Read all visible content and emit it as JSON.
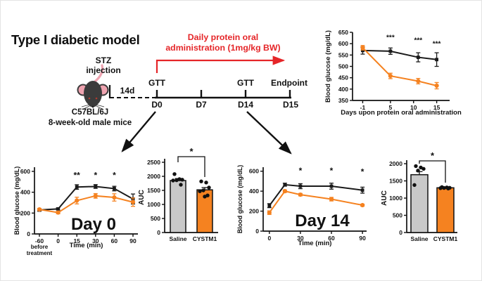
{
  "title": "Type I diabetic model",
  "colors": {
    "series_control": "#1a1a1a",
    "series_treatment": "#F58220",
    "red_accent": "#E52528",
    "gray_bar": "#C9C9C9",
    "mouse_body": "#3b3b3b",
    "mouse_ear": "#EFA3B0"
  },
  "schematic": {
    "stz_line1": "STZ",
    "stz_line2": "injection",
    "strain_line1": "C57BL/6J",
    "strain_line2": "8-week-old male mice",
    "interval_label": "14d",
    "red_note_line1": "Daily protein oral",
    "red_note_line2": "administration (1mg/kg BW)",
    "timeline": {
      "gtt1": "GTT",
      "gtt2": "GTT",
      "endpoint": "Endpoint",
      "d0": "D0",
      "d7": "D7",
      "d14": "D14",
      "d15": "D15"
    }
  },
  "chart_data": [
    {
      "id": "protein_admin",
      "type": "line",
      "title": "",
      "xlabel": "Days upon protein oral administration",
      "ylabel": "Blood glucose (mg/dL)",
      "xlim": [
        -3.2,
        17.8
      ],
      "ylim": [
        350,
        650
      ],
      "xticks": [
        -1,
        5,
        10,
        15
      ],
      "yticks": [
        350,
        400,
        450,
        500,
        550,
        600,
        650
      ],
      "x": [
        -1,
        5,
        11,
        15
      ],
      "series": [
        {
          "name": "Saline",
          "color": "#1a1a1a",
          "marker": "square",
          "values": [
            570,
            567,
            540,
            530
          ],
          "errors": [
            16,
            14,
            20,
            30
          ]
        },
        {
          "name": "CYSTM1",
          "color": "#F58220",
          "marker": "circle",
          "values": [
            582,
            458,
            435,
            415
          ],
          "errors": [
            10,
            12,
            12,
            14
          ]
        }
      ],
      "annotations": [
        {
          "x": 5,
          "y": 617,
          "text": "***"
        },
        {
          "x": 11,
          "y": 605,
          "text": "***"
        },
        {
          "x": 15,
          "y": 590,
          "text": "***"
        }
      ]
    },
    {
      "id": "gtt_day0",
      "type": "line",
      "inner_label": "Day 0",
      "xlabel": "Time (min)",
      "ylabel": "Blood glucose (mg/dL)",
      "x_note": [
        "before",
        "treatment"
      ],
      "categories": [
        "-60",
        "0",
        "15",
        "30",
        "60",
        "90"
      ],
      "ylim": [
        0,
        640
      ],
      "yticks": [
        0,
        200,
        400,
        600
      ],
      "series": [
        {
          "name": "Saline",
          "color": "#1a1a1a",
          "marker": "square",
          "values": [
            230,
            240,
            450,
            455,
            435,
            335
          ],
          "errors": [
            12,
            10,
            22,
            18,
            22,
            48
          ]
        },
        {
          "name": "CYSTM1",
          "color": "#F58220",
          "marker": "circle",
          "values": [
            235,
            205,
            320,
            365,
            350,
            305
          ],
          "errors": [
            10,
            12,
            32,
            22,
            35,
            40
          ]
        }
      ],
      "annotations": [
        {
          "xi": 2,
          "y": 535,
          "text": "**"
        },
        {
          "xi": 3,
          "y": 535,
          "text": "*"
        },
        {
          "xi": 4,
          "y": 535,
          "text": "*"
        }
      ]
    },
    {
      "id": "auc_day0",
      "type": "bar",
      "ylabel": "AUC",
      "ylim": [
        0,
        2500
      ],
      "yticks": [
        0,
        500,
        1000,
        1500,
        2000,
        2500
      ],
      "categories": [
        "Saline",
        "CYSTM1"
      ],
      "bars": [
        {
          "label": "Saline",
          "color": "#C9C9C9",
          "mean": 1850,
          "sem": 70,
          "dots": [
            2080,
            1900,
            1880,
            1860,
            1850,
            1700
          ]
        },
        {
          "label": "CYSTM1",
          "color": "#F58220",
          "mean": 1520,
          "sem": 80,
          "dots": [
            1820,
            1780,
            1600,
            1500,
            1470,
            1320,
            1280
          ]
        }
      ],
      "sig": "*"
    },
    {
      "id": "gtt_day14",
      "type": "line",
      "inner_label": "Day 14",
      "xlabel": "Time (min)",
      "ylabel": "Blood glucose (mg/dL)",
      "xlim": [
        -6,
        94
      ],
      "ylim": [
        0,
        640
      ],
      "xticks": [
        0,
        30,
        60,
        90
      ],
      "yticks": [
        0,
        200,
        400,
        600
      ],
      "x": [
        0,
        15,
        30,
        60,
        90
      ],
      "series": [
        {
          "name": "Saline",
          "color": "#1a1a1a",
          "marker": "square",
          "values": [
            255,
            465,
            450,
            450,
            410
          ],
          "errors": [
            20,
            15,
            25,
            30,
            30
          ]
        },
        {
          "name": "CYSTM1",
          "color": "#F58220",
          "marker": "circle",
          "values": [
            185,
            400,
            365,
            320,
            260
          ],
          "errors": [
            18,
            12,
            12,
            18,
            10
          ]
        }
      ],
      "annotations": [
        {
          "x": 30,
          "y": 575,
          "text": "*"
        },
        {
          "x": 60,
          "y": 575,
          "text": "*"
        },
        {
          "x": 90,
          "y": 565,
          "text": "*"
        }
      ]
    },
    {
      "id": "auc_day14",
      "type": "bar",
      "ylabel": "AUC",
      "ylim": [
        0,
        2000
      ],
      "yticks": [
        0,
        500,
        1000,
        1500,
        2000
      ],
      "categories": [
        "Saline",
        "CYSTM1"
      ],
      "bars": [
        {
          "label": "Saline",
          "color": "#C9C9C9",
          "mean": 1680,
          "sem": 90,
          "dots": [
            1930,
            1890,
            1850,
            1800,
            1380
          ]
        },
        {
          "label": "CYSTM1",
          "color": "#F58220",
          "mean": 1300,
          "sem": 25,
          "dots": [
            1320,
            1310,
            1300,
            1295,
            1290,
            1280
          ]
        }
      ],
      "sig": "*"
    }
  ]
}
